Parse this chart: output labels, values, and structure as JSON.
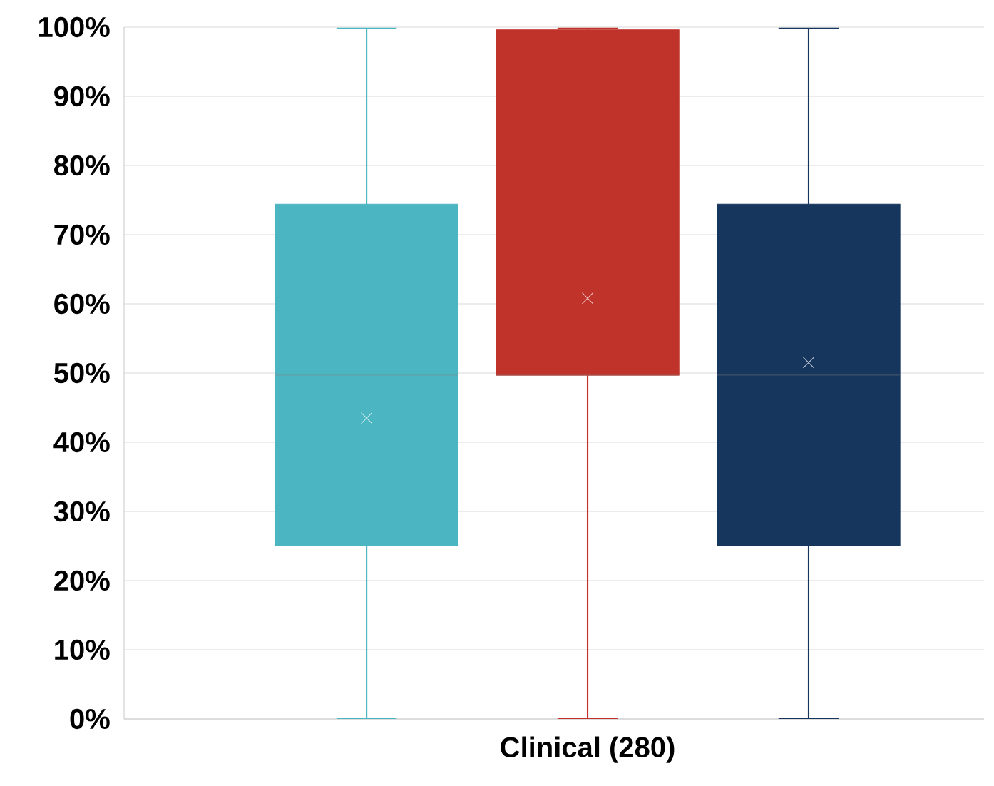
{
  "chart_data": {
    "type": "box",
    "categories": [
      "Clinical (280)"
    ],
    "series": [
      {
        "color": "#4bb5c1",
        "boxes": [
          {
            "low": 0,
            "q1": 25,
            "median": 49.7,
            "q3": 74.4,
            "high": 99.8,
            "mean": 43.5
          }
        ]
      },
      {
        "color": "#c0332b",
        "boxes": [
          {
            "low": 0,
            "q1": 49.7,
            "median": 49.7,
            "q3": 99.6,
            "high": 99.8,
            "mean": 60.8
          }
        ]
      },
      {
        "color": "#17365d",
        "boxes": [
          {
            "low": 0,
            "q1": 25,
            "median": 49.7,
            "q3": 74.4,
            "high": 99.8,
            "mean": 51.5
          }
        ]
      }
    ],
    "ylim": [
      0,
      100
    ],
    "yticks": [
      {
        "value": 0,
        "label": "0%"
      },
      {
        "value": 10,
        "label": "10%"
      },
      {
        "value": 20,
        "label": "20%"
      },
      {
        "value": 30,
        "label": "30%"
      },
      {
        "value": 40,
        "label": "40%"
      },
      {
        "value": 50,
        "label": "50%"
      },
      {
        "value": 60,
        "label": "60%"
      },
      {
        "value": 70,
        "label": "70%"
      },
      {
        "value": 80,
        "label": "80%"
      },
      {
        "value": 90,
        "label": "90%"
      },
      {
        "value": 100,
        "label": "100%"
      }
    ],
    "grid": "y",
    "marker": "cross"
  }
}
